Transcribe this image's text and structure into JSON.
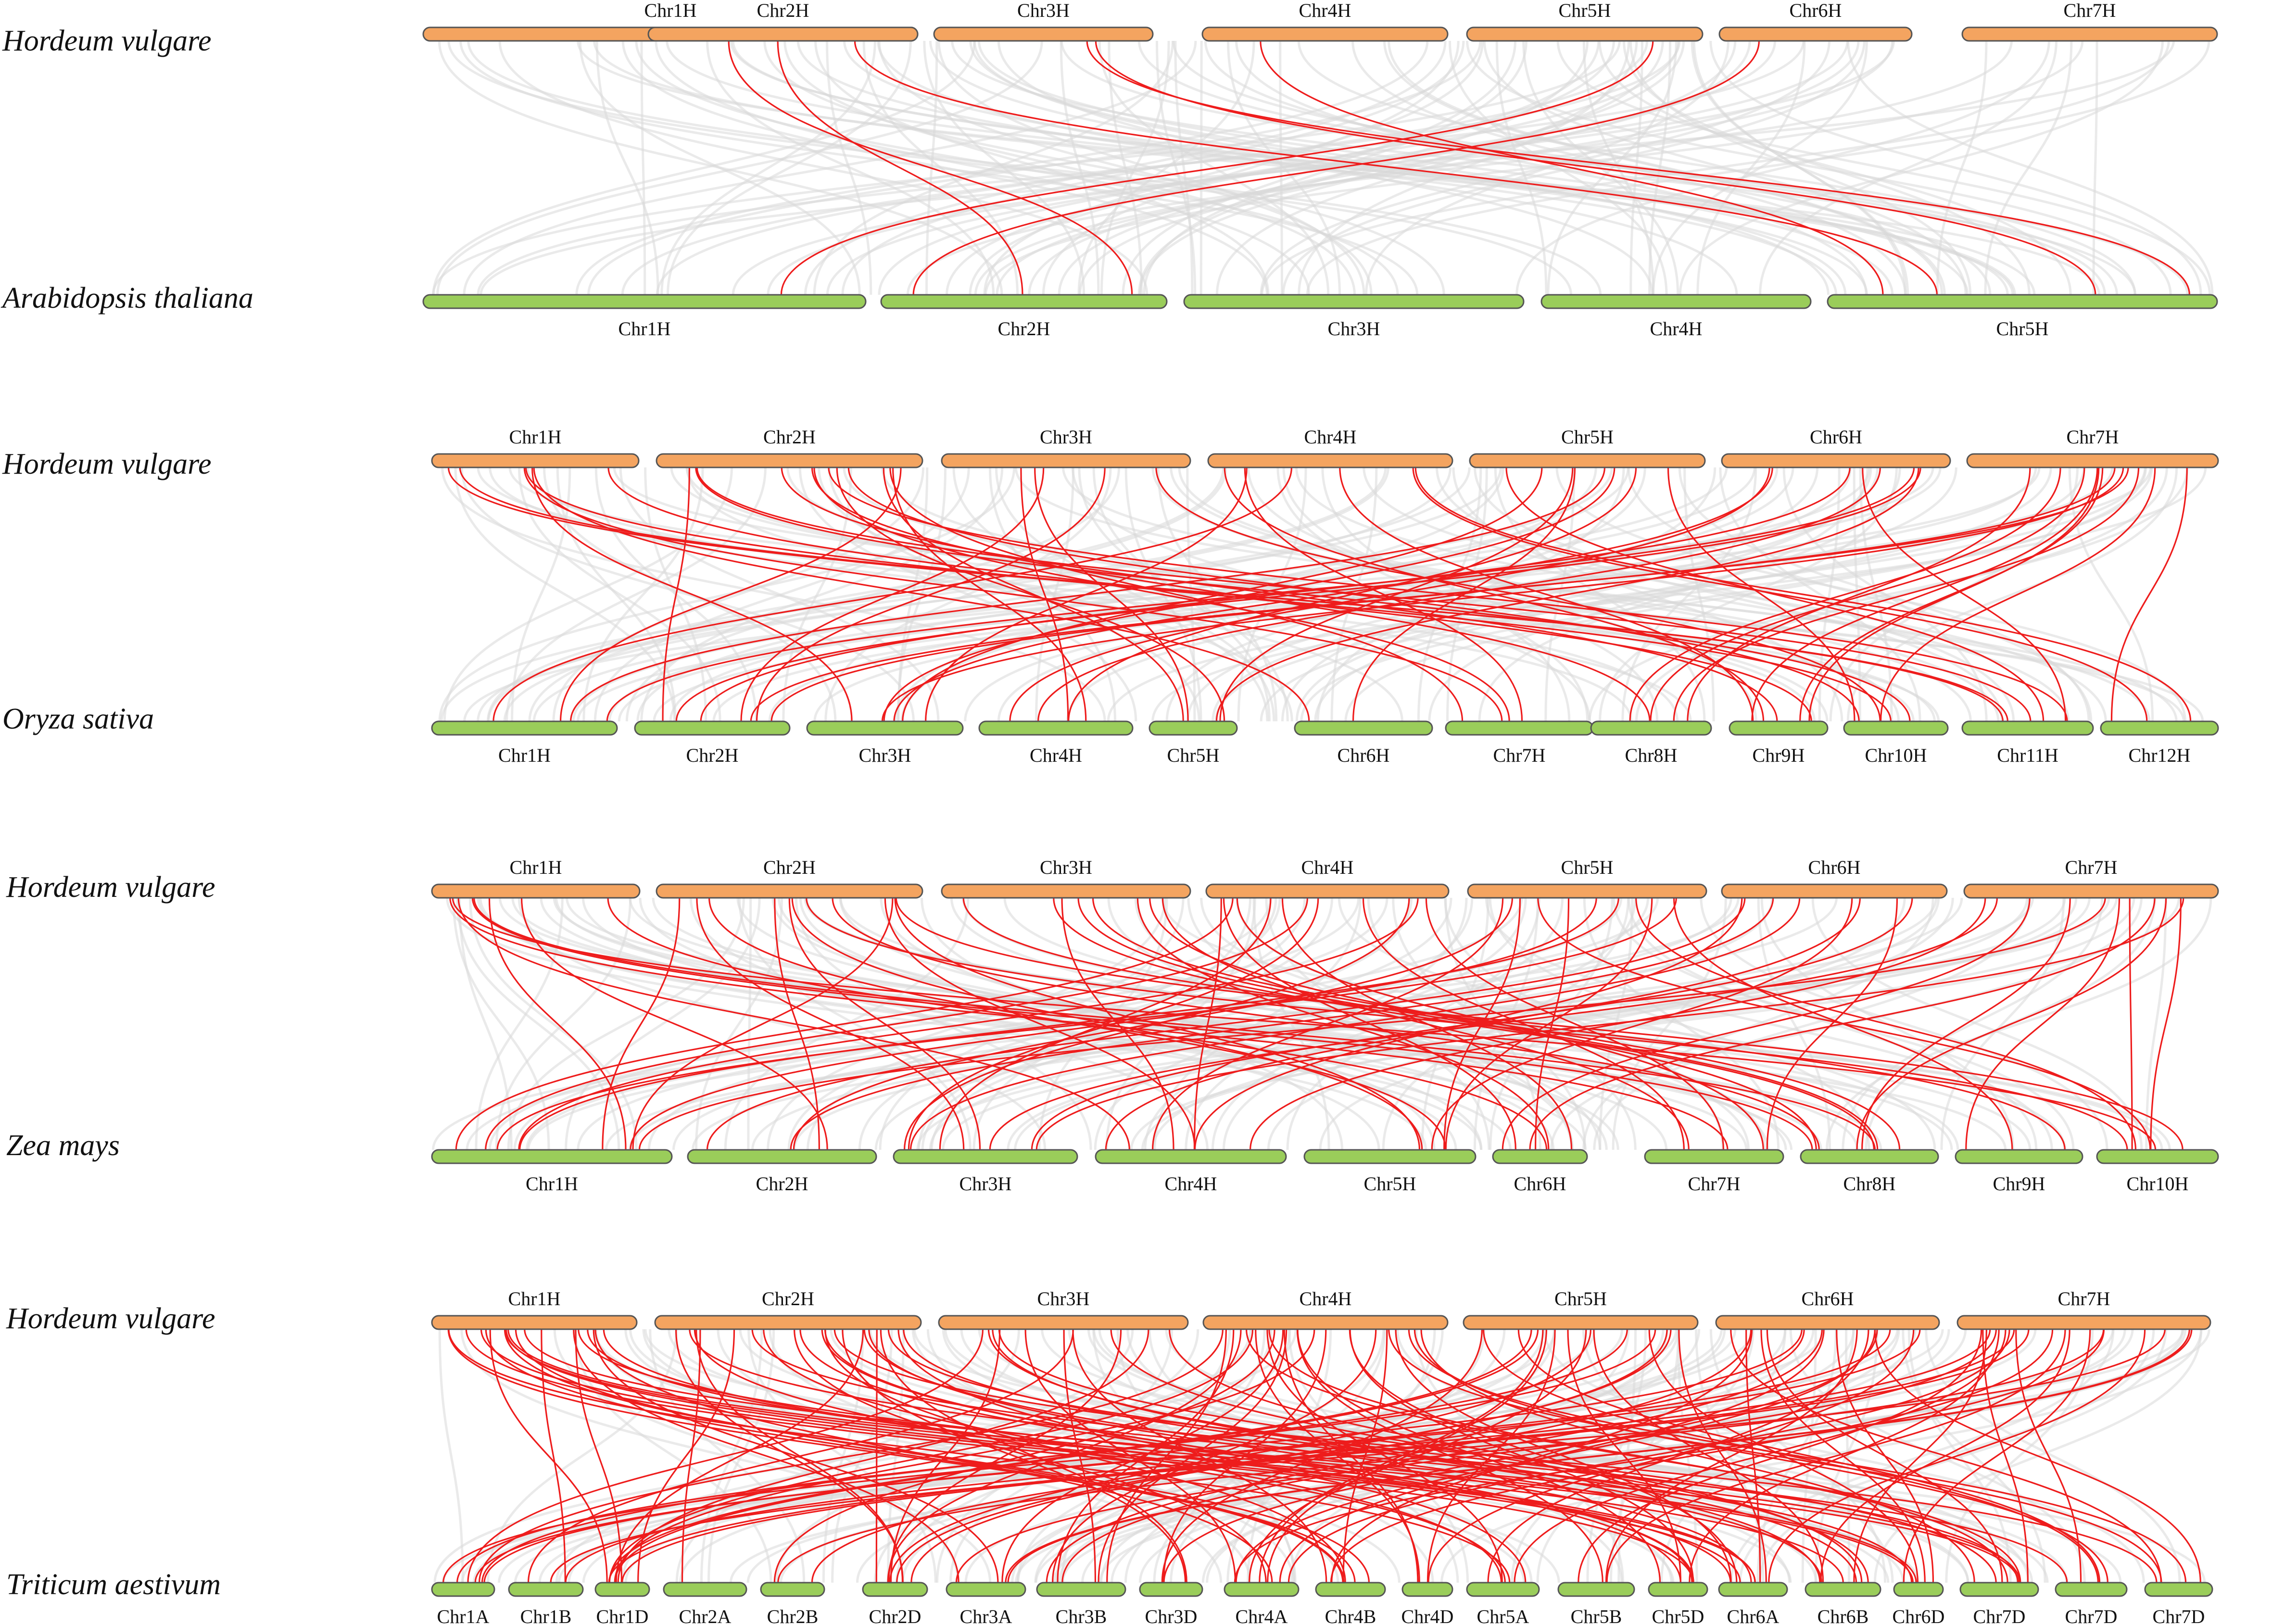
{
  "colors": {
    "top_chromosome": "#f4a460",
    "bottom_chromosome": "#9acd5a",
    "background_links": "#d9d9d9",
    "highlight_links": "#ee1c1c"
  },
  "panels": [
    {
      "top_species": "Hordeum vulgare",
      "bottom_species": "Arabidopsis thaliana",
      "top_chromosomes": [
        "Chr1H",
        "Chr2H",
        "Chr3H",
        "Chr4H",
        "Chr5H",
        "Chr6H",
        "Chr7H"
      ],
      "bottom_chromosomes": [
        "Chr1H",
        "Chr2H",
        "Chr3H",
        "Chr4H",
        "Chr5H"
      ]
    },
    {
      "top_species": "Hordeum vulgare",
      "bottom_species": "Oryza sativa",
      "top_chromosomes": [
        "Chr1H",
        "Chr2H",
        "Chr3H",
        "Chr4H",
        "Chr5H",
        "Chr6H",
        "Chr7H"
      ],
      "bottom_chromosomes": [
        "Chr1H",
        "Chr2H",
        "Chr3H",
        "Chr4H",
        "Chr5H",
        "Chr6H",
        "Chr7H",
        "Chr8H",
        "Chr9H",
        "Chr10H",
        "Chr11H",
        "Chr12H"
      ]
    },
    {
      "top_species": "Hordeum vulgare",
      "bottom_species": "Zea mays",
      "top_chromosomes": [
        "Chr1H",
        "Chr2H",
        "Chr3H",
        "Chr4H",
        "Chr5H",
        "Chr6H",
        "Chr7H"
      ],
      "bottom_chromosomes": [
        "Chr1H",
        "Chr2H",
        "Chr3H",
        "Chr4H",
        "Chr5H",
        "Chr6H",
        "Chr7H",
        "Chr8H",
        "Chr9H",
        "Chr10H"
      ]
    },
    {
      "top_species": "Hordeum vulgare",
      "bottom_species": "Triticum aestivum",
      "top_chromosomes": [
        "Chr1H",
        "Chr2H",
        "Chr3H",
        "Chr4H",
        "Chr5H",
        "Chr6H",
        "Chr7H"
      ],
      "bottom_chromosomes": [
        "Chr1A",
        "Chr1B",
        "Chr1D",
        "Chr2A",
        "Chr2B",
        "Chr2D",
        "Chr3A",
        "Chr3B",
        "Chr3D",
        "Chr4A",
        "Chr4B",
        "Chr4D",
        "Chr5A",
        "Chr5B",
        "Chr5D",
        "Chr6A",
        "Chr6B",
        "Chr6D",
        "Chr7D",
        "Chr7D",
        "Chr7D"
      ]
    }
  ]
}
